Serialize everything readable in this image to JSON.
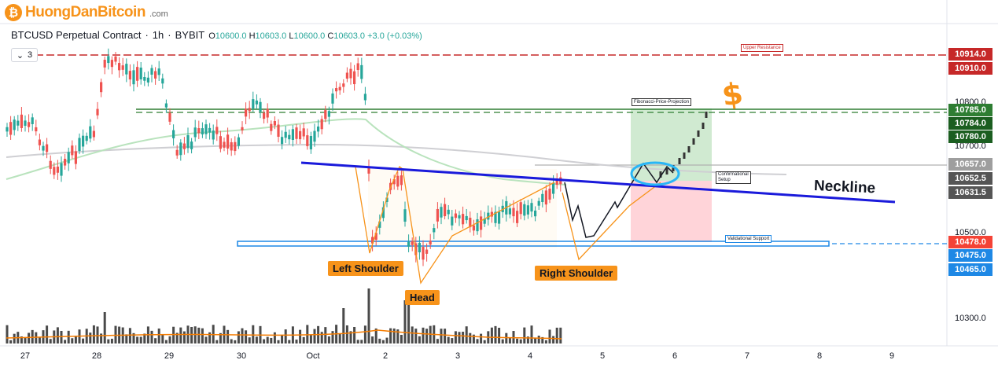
{
  "brand": {
    "name": "HuongDanBitcoin",
    "domain": ".com",
    "logo_glyph": "₿"
  },
  "legend": {
    "symbol": "BTCUSD Perpetual Contract",
    "interval": "1h",
    "exchange": "BYBIT",
    "o_label": "O",
    "o_value": "10600.0",
    "h_label": "H",
    "h_value": "10603.0",
    "l_label": "L",
    "l_value": "10600.0",
    "c_label": "C",
    "c_value": "10603.0",
    "change": "+3.0 (+0.03%)"
  },
  "indicator_toggle": {
    "count": "3",
    "icon": "chevron-down-icon"
  },
  "price_axis": {
    "ticks": [
      "10800.0",
      "10700.0",
      "10500.0",
      "10300.0"
    ],
    "tags": [
      {
        "value": "10914.0",
        "color": "#c62828"
      },
      {
        "value": "10910.0",
        "color": "#c62828"
      },
      {
        "value": "10785.0",
        "color": "#2e7d32"
      },
      {
        "value": "10784.0",
        "color": "#1b5e20"
      },
      {
        "value": "10780.0",
        "color": "#1b5e20"
      },
      {
        "value": "10657.0",
        "color": "#9e9e9e"
      },
      {
        "value": "10652.5",
        "color": "#555555"
      },
      {
        "value": "10631.5",
        "color": "#555555"
      },
      {
        "value": "10478.0",
        "color": "#f44336"
      },
      {
        "value": "10475.0",
        "color": "#1e88e5"
      },
      {
        "value": "10465.0",
        "color": "#1e88e5"
      }
    ]
  },
  "time_axis": [
    "27",
    "28",
    "29",
    "30",
    "Oct",
    "2",
    "3",
    "4",
    "5",
    "6",
    "7",
    "8",
    "9"
  ],
  "annotations": {
    "left_shoulder": "Left Shoulder",
    "head": "Head",
    "right_shoulder": "Right Shoulder",
    "neckline": "Neckline",
    "upper_resistance": "Upper Resistance",
    "fib_projection": "Fibonacci-Price-Projection",
    "confirmational_setup_1": "Confirmational",
    "confirmational_setup_2": "Setup",
    "validational_support": "Validational Support",
    "dollar_sign": "$"
  },
  "colors": {
    "up_candle": "#26a69a",
    "down_candle": "#ef5350",
    "neckline": "#1a1adb",
    "support": "#1e88e5",
    "resistance": "#c62828",
    "accent": "#f7931a"
  }
}
